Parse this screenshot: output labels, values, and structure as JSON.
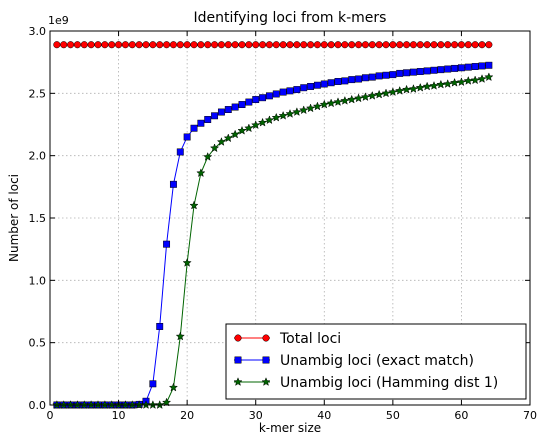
{
  "chart_data": {
    "type": "line",
    "title": "Identifying loci from k-mers",
    "xlabel": "k-mer size",
    "ylabel": "Number of loci",
    "offset_label": "1e9",
    "xlim": [
      0,
      70
    ],
    "ylim": [
      0.0,
      3.0
    ],
    "xticks": [
      0,
      10,
      20,
      30,
      40,
      50,
      60,
      70
    ],
    "xtick_labels": [
      "0",
      "10",
      "20",
      "30",
      "40",
      "50",
      "60",
      "70"
    ],
    "yticks": [
      0.0,
      0.5,
      1.0,
      1.5,
      2.0,
      2.5,
      3.0
    ],
    "ytick_labels": [
      "0.0",
      "0.5",
      "1.0",
      "1.5",
      "2.0",
      "2.5",
      "3.0"
    ],
    "grid": true,
    "legend_position": "lower-right",
    "x": [
      1,
      2,
      3,
      4,
      5,
      6,
      7,
      8,
      9,
      10,
      11,
      12,
      13,
      14,
      15,
      16,
      17,
      18,
      19,
      20,
      21,
      22,
      23,
      24,
      25,
      26,
      27,
      28,
      29,
      30,
      31,
      32,
      33,
      34,
      35,
      36,
      37,
      38,
      39,
      40,
      41,
      42,
      43,
      44,
      45,
      46,
      47,
      48,
      49,
      50,
      51,
      52,
      53,
      54,
      55,
      56,
      57,
      58,
      59,
      60,
      61,
      62,
      63,
      64
    ],
    "series": [
      {
        "name": "Total loci",
        "color": "#ff0000",
        "marker": "circle",
        "values": [
          2.89,
          2.89,
          2.89,
          2.89,
          2.89,
          2.89,
          2.89,
          2.89,
          2.89,
          2.89,
          2.89,
          2.89,
          2.89,
          2.89,
          2.89,
          2.89,
          2.89,
          2.89,
          2.89,
          2.89,
          2.89,
          2.89,
          2.89,
          2.89,
          2.89,
          2.89,
          2.89,
          2.89,
          2.89,
          2.89,
          2.89,
          2.89,
          2.89,
          2.89,
          2.89,
          2.89,
          2.89,
          2.89,
          2.89,
          2.89,
          2.89,
          2.89,
          2.89,
          2.89,
          2.89,
          2.89,
          2.89,
          2.89,
          2.89,
          2.89,
          2.89,
          2.89,
          2.89,
          2.89,
          2.89,
          2.89,
          2.89,
          2.89,
          2.89,
          2.89,
          2.89,
          2.89,
          2.89,
          2.89
        ]
      },
      {
        "name": "Unambig loci (exact match)",
        "color": "#0000ff",
        "marker": "square",
        "values": [
          0,
          0,
          0,
          0,
          0,
          0,
          0,
          0,
          0,
          0,
          0,
          0,
          0.005,
          0.03,
          0.17,
          0.63,
          1.29,
          1.77,
          2.03,
          2.15,
          2.22,
          2.26,
          2.29,
          2.32,
          2.35,
          2.37,
          2.39,
          2.41,
          2.43,
          2.45,
          2.465,
          2.48,
          2.495,
          2.51,
          2.52,
          2.53,
          2.545,
          2.555,
          2.565,
          2.575,
          2.585,
          2.595,
          2.6,
          2.61,
          2.615,
          2.625,
          2.63,
          2.64,
          2.645,
          2.65,
          2.66,
          2.665,
          2.67,
          2.675,
          2.68,
          2.685,
          2.69,
          2.695,
          2.7,
          2.705,
          2.71,
          2.715,
          2.72,
          2.725
        ]
      },
      {
        "name": "Unambig loci (Hamming dist 1)",
        "color": "#006400",
        "marker": "star",
        "values": [
          0,
          0,
          0,
          0,
          0,
          0,
          0,
          0,
          0,
          0,
          0,
          0,
          0,
          0,
          0,
          0,
          0.02,
          0.14,
          0.55,
          1.14,
          1.6,
          1.86,
          1.99,
          2.06,
          2.11,
          2.14,
          2.17,
          2.2,
          2.22,
          2.245,
          2.265,
          2.285,
          2.305,
          2.32,
          2.335,
          2.35,
          2.365,
          2.38,
          2.395,
          2.41,
          2.42,
          2.43,
          2.44,
          2.45,
          2.46,
          2.47,
          2.48,
          2.49,
          2.5,
          2.51,
          2.52,
          2.53,
          2.535,
          2.545,
          2.555,
          2.56,
          2.57,
          2.575,
          2.585,
          2.59,
          2.6,
          2.605,
          2.615,
          2.63
        ]
      }
    ]
  }
}
